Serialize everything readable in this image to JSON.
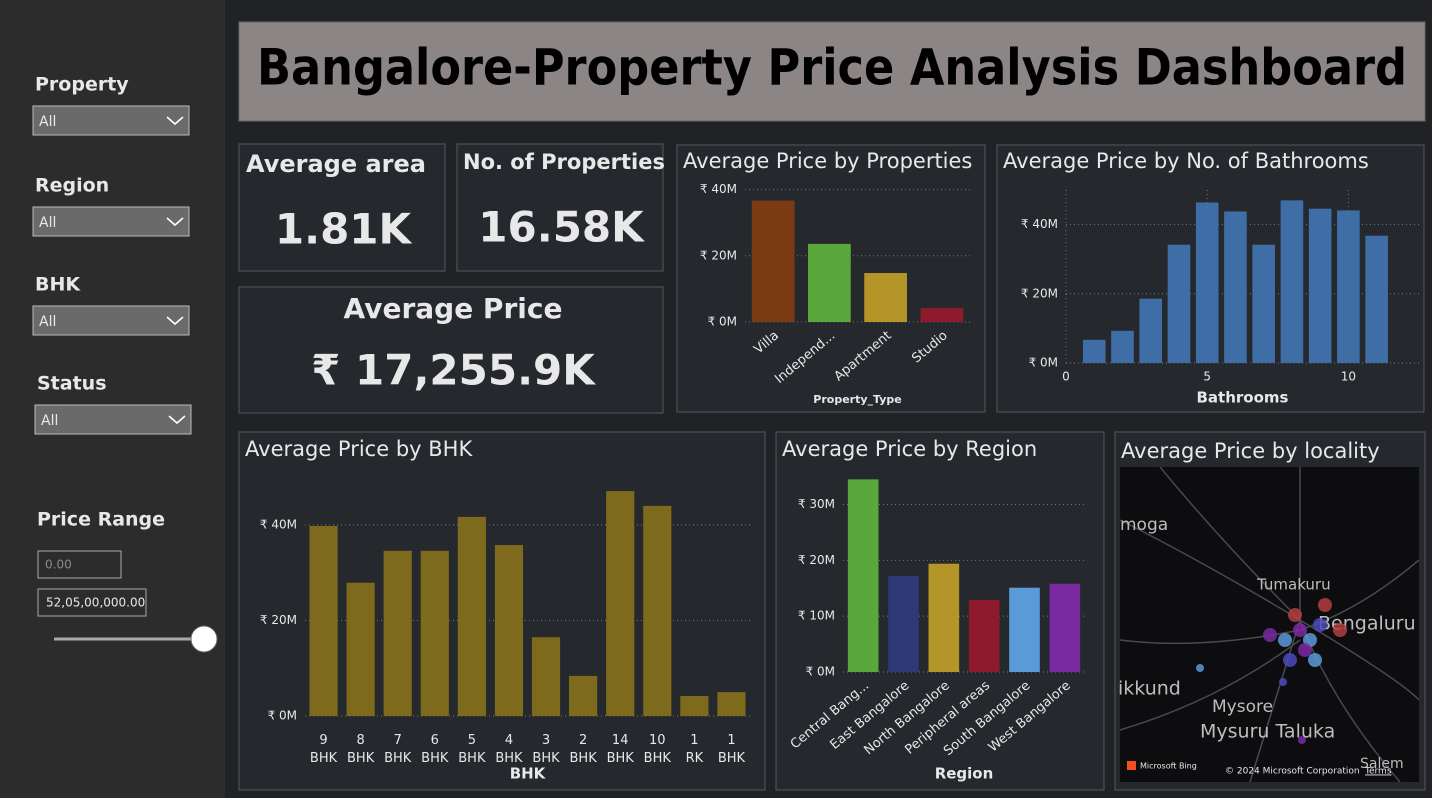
{
  "header": {
    "title": "Bangalore-Property Price Analysis Dashboard"
  },
  "filters": [
    {
      "label": "Property",
      "value": "All"
    },
    {
      "label": "Region",
      "value": "All"
    },
    {
      "label": "BHK",
      "value": "All"
    },
    {
      "label": "Status",
      "value": "All"
    }
  ],
  "price_range": {
    "label": "Price Range",
    "min": "0.00",
    "max": "52,05,00,000.00"
  },
  "kpis": [
    {
      "label": "Average area",
      "value": "1.81K"
    },
    {
      "label": "No. of Properties",
      "value": "16.58K"
    },
    {
      "label": "Average Price",
      "value": "₹ 17,255.9K"
    }
  ],
  "chart_data": [
    {
      "type": "bar",
      "title": "Average Price by Properties",
      "xlabel": "Property_Type",
      "categories": [
        "Villa",
        "Independ...",
        "Apartment",
        "Studio"
      ],
      "values": [
        36.7,
        23.6,
        14.8,
        4.2
      ],
      "colors": [
        "#7a3b12",
        "#5aa83c",
        "#b39528",
        "#8e1b2b"
      ],
      "ylim": [
        0,
        42
      ],
      "yticks": [
        {
          "value": 0,
          "label": "₹ 0M"
        },
        {
          "value": 20,
          "label": "₹ 20M"
        },
        {
          "value": 40,
          "label": "₹ 40M"
        }
      ],
      "grid": true
    },
    {
      "type": "bar",
      "title": "Average Price by No. of Bathrooms",
      "xlabel": "Bathrooms",
      "x": [
        1,
        2,
        3,
        4,
        5,
        6,
        7,
        8,
        9,
        10,
        11
      ],
      "values": [
        6.7,
        9.3,
        18.6,
        34.2,
        46.4,
        43.8,
        34.2,
        47.0,
        44.6,
        44.1,
        36.8
      ],
      "color": "#3f6ea6",
      "xlim": [
        0,
        12.5
      ],
      "xticks": [
        0,
        5,
        10
      ],
      "ylim": [
        0,
        50
      ],
      "yticks": [
        {
          "value": 0,
          "label": "₹ 0M"
        },
        {
          "value": 20,
          "label": "₹ 20M"
        },
        {
          "value": 40,
          "label": "₹ 40M"
        }
      ],
      "grid": true
    },
    {
      "type": "bar",
      "title": "Average Price by BHK",
      "xlabel": "BHK",
      "categories": [
        "9 BHK",
        "8 BHK",
        "7 BHK",
        "6 BHK",
        "5 BHK",
        "4 BHK",
        "3 BHK",
        "2 BHK",
        "14 BHK",
        "10 BHK",
        "1 RK",
        "1 BHK"
      ],
      "values": [
        39.8,
        27.9,
        34.6,
        34.6,
        41.7,
        35.8,
        16.5,
        8.4,
        47.1,
        44.0,
        4.2,
        5.0
      ],
      "color": "#7d6a1c",
      "ylim": [
        0,
        49
      ],
      "yticks": [
        {
          "value": 0,
          "label": "₹ 0M"
        },
        {
          "value": 20,
          "label": "₹ 20M"
        },
        {
          "value": 40,
          "label": "₹ 40M"
        }
      ],
      "grid": true
    },
    {
      "type": "bar",
      "title": "Average Price by Region",
      "xlabel": "Region",
      "categories": [
        "Central Bang...",
        "East Bangalore",
        "North Bangalore",
        "Peripheral areas",
        "South Bangalore",
        "West Bangalore"
      ],
      "values": [
        34.5,
        17.2,
        19.4,
        12.9,
        15.1,
        15.8
      ],
      "colors": [
        "#5aa83c",
        "#2e3a78",
        "#b39528",
        "#8e1b2b",
        "#5a9ad8",
        "#7a2aa0"
      ],
      "ylim": [
        0,
        36
      ],
      "yticks": [
        {
          "value": 0,
          "label": "₹ 0M"
        },
        {
          "value": 10,
          "label": "₹ 10M"
        },
        {
          "value": 20,
          "label": "₹ 20M"
        },
        {
          "value": 30,
          "label": "₹ 30M"
        }
      ],
      "grid": true
    }
  ],
  "map": {
    "title": "Average Price by locality",
    "labels": [
      "Tumakuru",
      "Bengaluru",
      "ikkund",
      "Mysore",
      "Mysuru Taluka",
      "Salem",
      "moga"
    ],
    "brand": "Microsoft Bing",
    "copyright": "© 2024 Microsoft Corporation",
    "terms": "Terms"
  }
}
